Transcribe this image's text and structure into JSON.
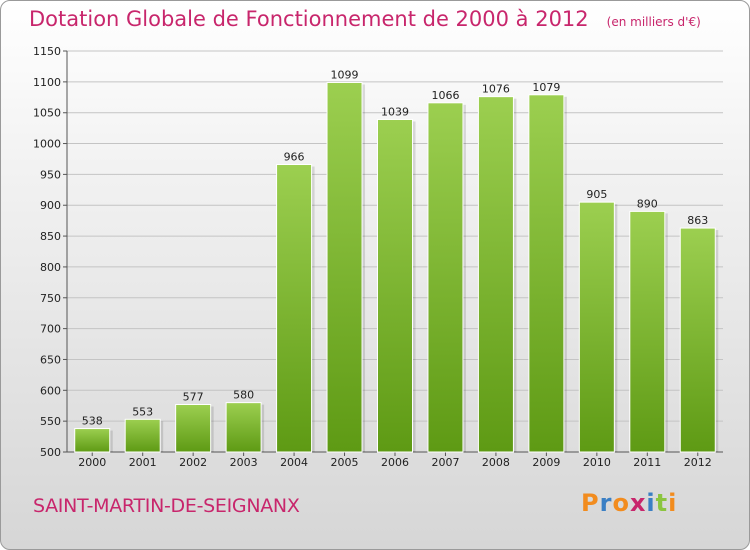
{
  "header": {
    "title": "Dotation Globale de Fonctionnement de 2000 à 2012",
    "unit": "(en milliers d'€)"
  },
  "footer": {
    "commune": "SAINT-MARTIN-DE-SEIGNANX",
    "logo": "Proxiti"
  },
  "colors": {
    "title": "#c8266c",
    "bar_top": "#9ccf50",
    "bar_bottom": "#5e9a14",
    "logo_letters": [
      "#f28c1e",
      "#3a7fc4",
      "#f28c1e",
      "#c8266c",
      "#3a7fc4",
      "#8bc53f",
      "#f28c1e"
    ]
  },
  "chart_data": {
    "type": "bar",
    "categories": [
      "2000",
      "2001",
      "2002",
      "2003",
      "2004",
      "2005",
      "2006",
      "2007",
      "2008",
      "2009",
      "2010",
      "2011",
      "2012"
    ],
    "values": [
      538,
      553,
      577,
      580,
      966,
      1099,
      1039,
      1066,
      1076,
      1079,
      905,
      890,
      863
    ],
    "title": "Dotation Globale de Fonctionnement de 2000 à 2012",
    "ylabel": "",
    "xlabel": "",
    "ylim": [
      500,
      1150
    ],
    "yticks": [
      500,
      550,
      600,
      650,
      700,
      750,
      800,
      850,
      900,
      950,
      1000,
      1050,
      1100,
      1150
    ],
    "grid": true
  }
}
